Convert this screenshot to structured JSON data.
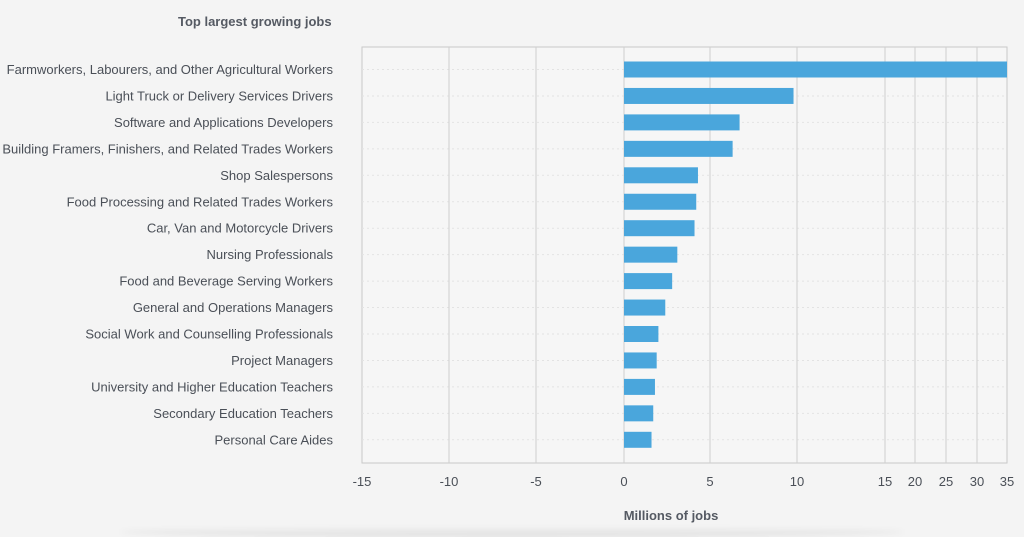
{
  "chart_data": {
    "type": "bar",
    "orientation": "horizontal",
    "title": "Top largest growing jobs",
    "xlabel": "Millions of jobs",
    "ylabel": "",
    "categories": [
      "Farmworkers, Labourers, and Other Agricultural Workers",
      "Light Truck or Delivery Services Drivers",
      "Software and Applications Developers",
      "Building Framers, Finishers, and Related Trades Workers",
      "Shop Salespersons",
      "Food Processing and Related Trades Workers",
      "Car, Van and Motorcycle Drivers",
      "Nursing Professionals",
      "Food and Beverage Serving Workers",
      "General and Operations Managers",
      "Social Work and Counselling Professionals",
      "Project Managers",
      "University and Higher Education Teachers",
      "Secondary Education Teachers",
      "Personal Care Aides"
    ],
    "values": [
      35,
      9.8,
      6.7,
      6.3,
      4.3,
      4.2,
      4.1,
      3.1,
      2.8,
      2.4,
      2.0,
      1.9,
      1.8,
      1.7,
      1.6
    ],
    "xticks": [
      -15,
      -10,
      -5,
      0,
      5,
      10,
      15,
      20,
      25,
      30,
      35
    ],
    "xlim": [
      -15,
      35
    ],
    "color": "#4aa6dc",
    "grid": true
  }
}
